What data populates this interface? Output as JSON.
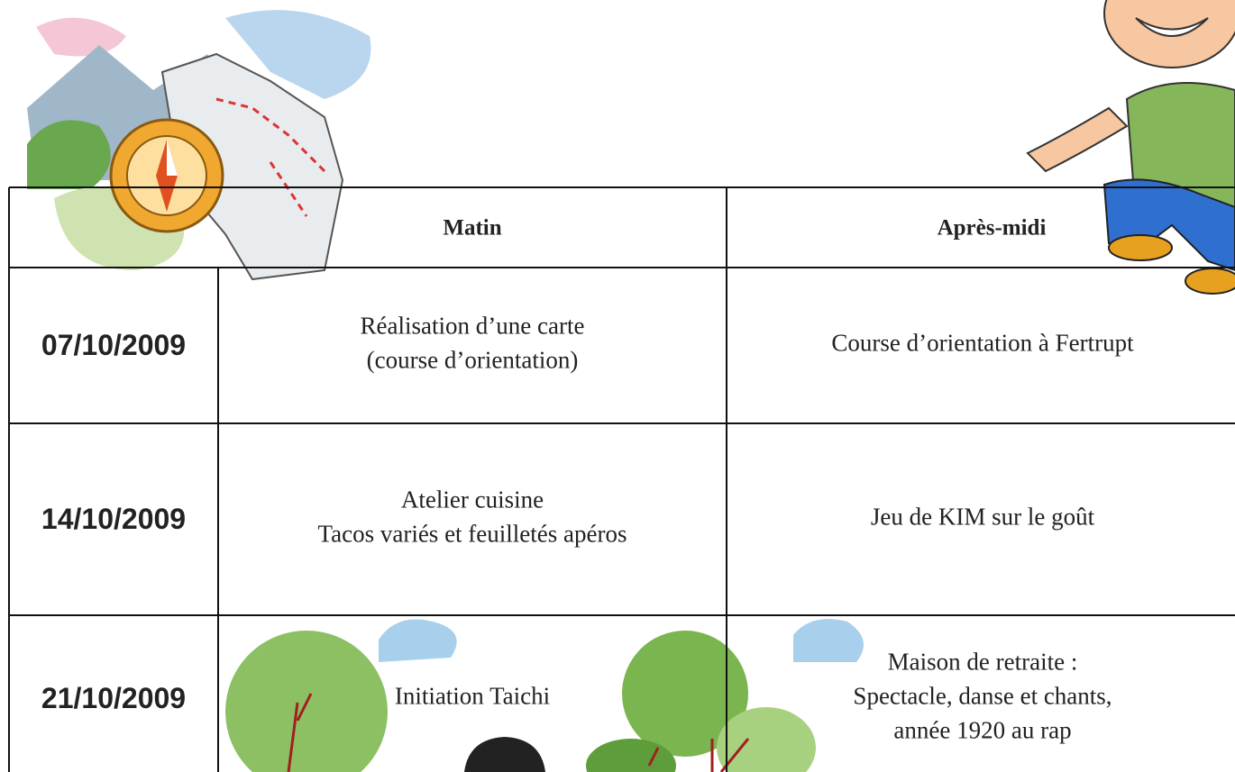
{
  "table": {
    "header": [
      "Matin",
      "Après-midi"
    ],
    "rows": [
      {
        "date": "07/10/2009",
        "matin": [
          "Réalisation d’une carte",
          "(course d’orientation)"
        ],
        "apres_midi": [
          "Course d’orientation à Fertrupt"
        ]
      },
      {
        "date": "14/10/2009",
        "matin": [
          "Atelier cuisine",
          "Tacos variés et feuilletés apéros"
        ],
        "apres_midi": [
          "Jeu de KIM sur le goût"
        ]
      },
      {
        "date": "21/10/2009",
        "matin": [
          "Initiation Taichi"
        ],
        "apres_midi": [
          "Maison de retraite :",
          "Spectacle, danse et chants,",
          "année 1920 au rap"
        ]
      }
    ]
  }
}
